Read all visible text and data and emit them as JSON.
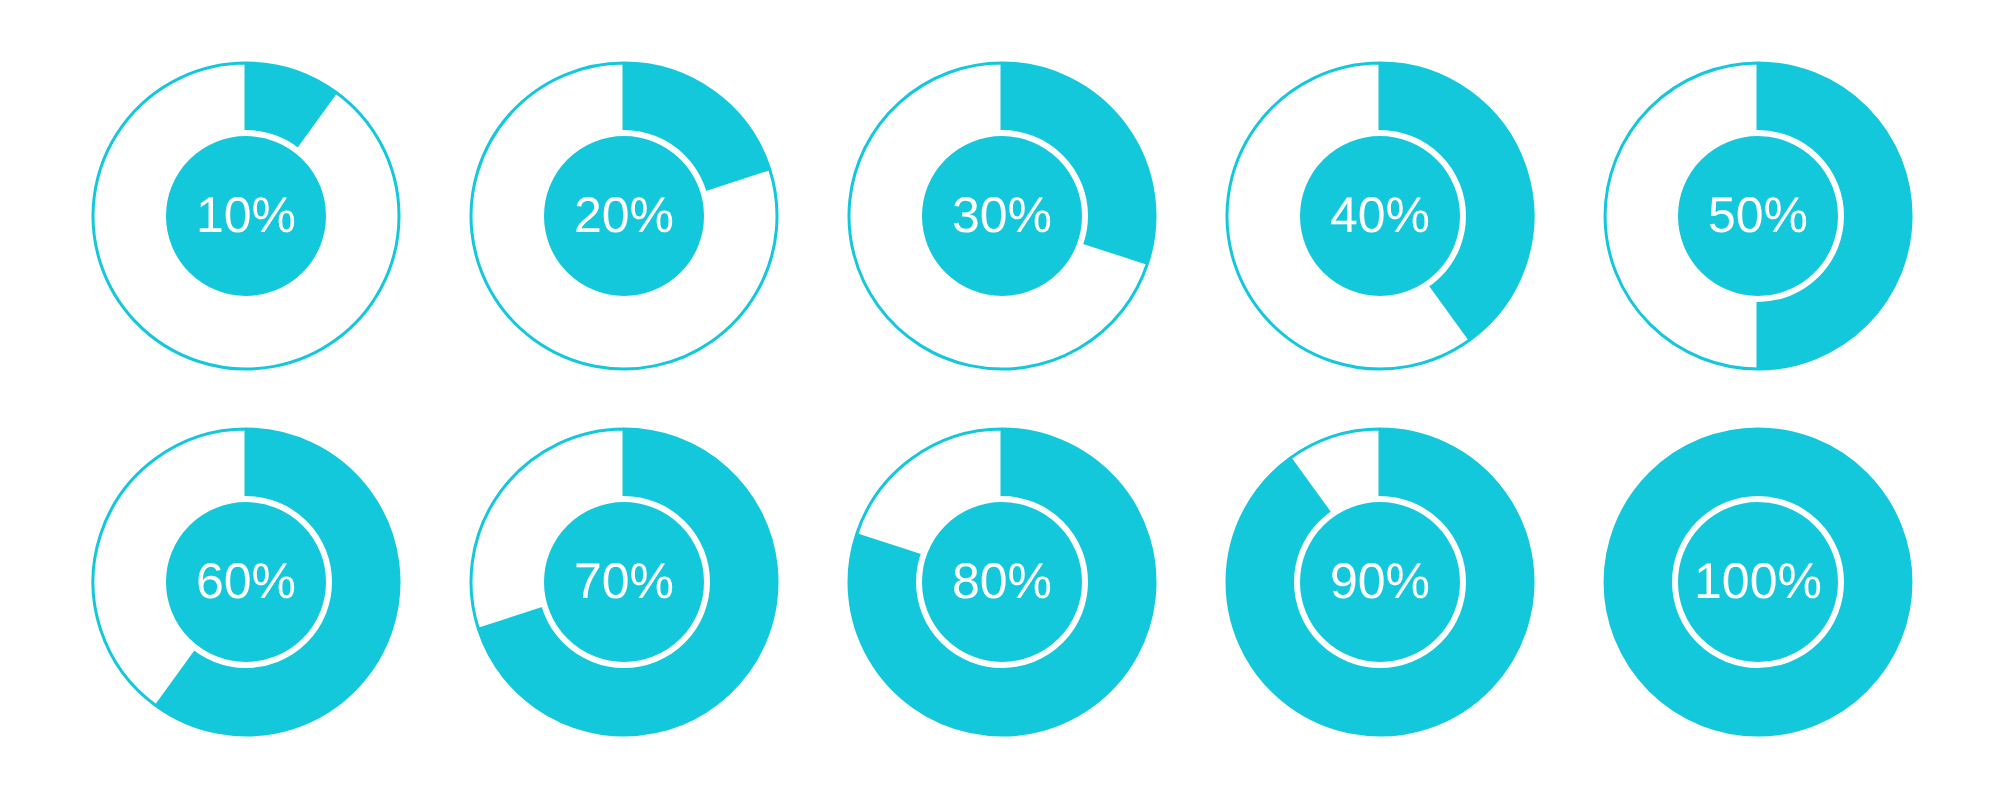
{
  "chart_data": [
    {
      "type": "donut",
      "categories": [
        null,
        null
      ],
      "values": [
        10,
        90
      ],
      "colors": [
        "#14c8dc",
        "#ffffff"
      ],
      "annotations": [
        "10%"
      ]
    },
    {
      "type": "donut",
      "categories": [
        null,
        null
      ],
      "values": [
        20,
        80
      ],
      "colors": [
        "#14c8dc",
        "#ffffff"
      ],
      "annotations": [
        "20%"
      ]
    },
    {
      "type": "donut",
      "categories": [
        null,
        null
      ],
      "values": [
        30,
        70
      ],
      "colors": [
        "#14c8dc",
        "#ffffff"
      ],
      "annotations": [
        "30%"
      ]
    },
    {
      "type": "donut",
      "categories": [
        null,
        null
      ],
      "values": [
        40,
        60
      ],
      "colors": [
        "#14c8dc",
        "#ffffff"
      ],
      "annotations": [
        "40%"
      ]
    },
    {
      "type": "donut",
      "categories": [
        null,
        null
      ],
      "values": [
        50,
        50
      ],
      "colors": [
        "#14c8dc",
        "#ffffff"
      ],
      "annotations": [
        "50%"
      ]
    },
    {
      "type": "donut",
      "categories": [
        null,
        null
      ],
      "values": [
        60,
        40
      ],
      "colors": [
        "#14c8dc",
        "#ffffff"
      ],
      "annotations": [
        "60%"
      ]
    },
    {
      "type": "donut",
      "categories": [
        null,
        null
      ],
      "values": [
        70,
        30
      ],
      "colors": [
        "#14c8dc",
        "#ffffff"
      ],
      "annotations": [
        "70%"
      ]
    },
    {
      "type": "donut",
      "categories": [
        null,
        null
      ],
      "values": [
        80,
        20
      ],
      "colors": [
        "#14c8dc",
        "#ffffff"
      ],
      "annotations": [
        "80%"
      ]
    },
    {
      "type": "donut",
      "categories": [
        null,
        null
      ],
      "values": [
        90,
        10
      ],
      "colors": [
        "#14c8dc",
        "#ffffff"
      ],
      "annotations": [
        "90%"
      ]
    },
    {
      "type": "donut",
      "categories": [
        null,
        null
      ],
      "values": [
        100,
        0
      ],
      "colors": [
        "#14c8dc",
        "#ffffff"
      ],
      "annotations": [
        "100%"
      ]
    }
  ]
}
